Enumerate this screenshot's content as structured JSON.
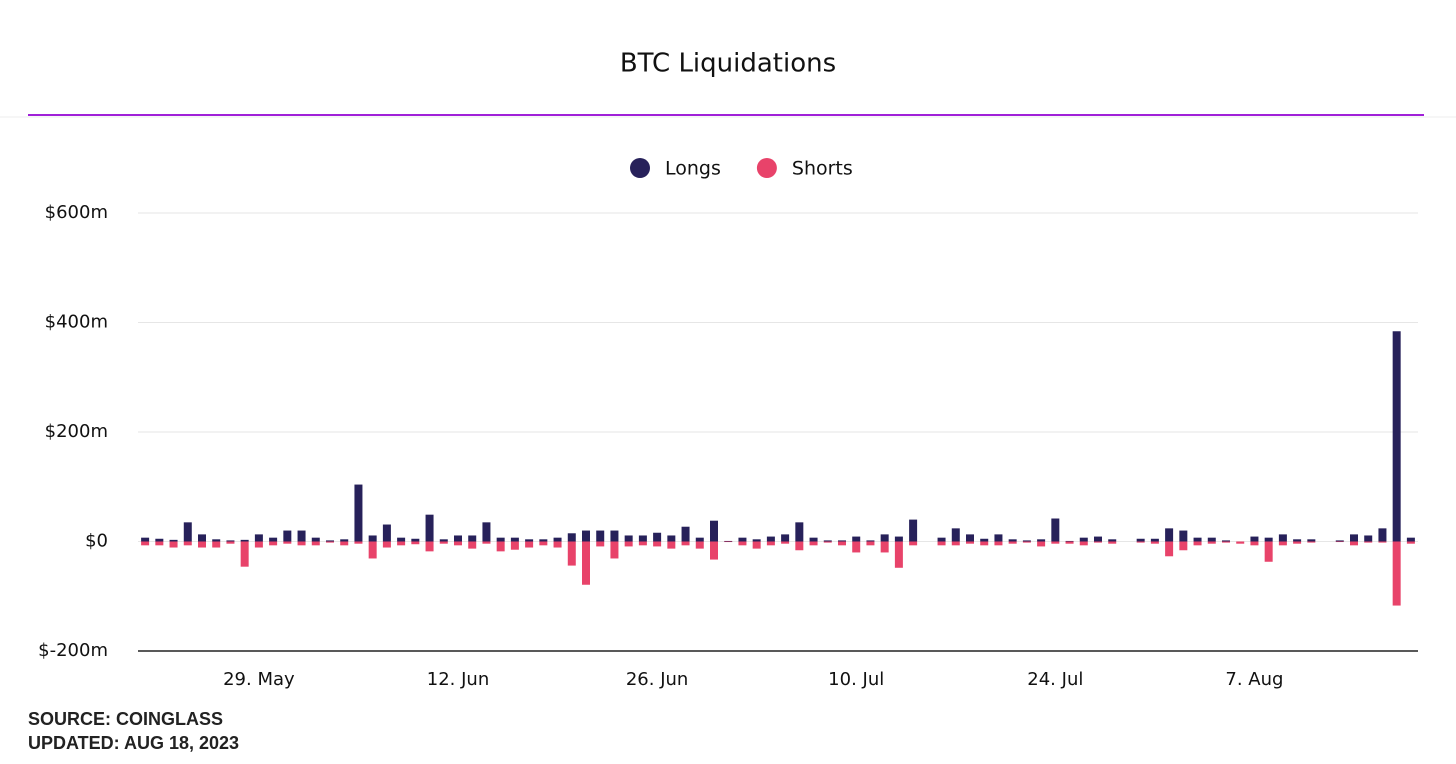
{
  "chart_data": {
    "type": "bar",
    "title": "BTC Liquidations",
    "categories": [
      null,
      null,
      null,
      null,
      null,
      null,
      null,
      null,
      "29. May",
      null,
      null,
      null,
      null,
      null,
      null,
      null,
      null,
      null,
      null,
      null,
      null,
      null,
      "12. Jun",
      null,
      null,
      null,
      null,
      null,
      null,
      null,
      null,
      null,
      null,
      null,
      null,
      null,
      "26. Jun",
      null,
      null,
      null,
      null,
      null,
      null,
      null,
      null,
      null,
      null,
      null,
      null,
      null,
      "10. Jul",
      null,
      null,
      null,
      null,
      null,
      null,
      null,
      null,
      null,
      null,
      null,
      null,
      null,
      "24. Jul",
      null,
      null,
      null,
      null,
      null,
      null,
      null,
      null,
      null,
      null,
      null,
      null,
      null,
      "7. Aug",
      null,
      null,
      null,
      null,
      null,
      null,
      null,
      null,
      null,
      null,
      null
    ],
    "series": [
      {
        "name": "Longs",
        "color": "#27215a",
        "values": [
          7,
          5,
          3,
          35,
          13,
          4,
          2,
          3,
          13,
          7,
          20,
          20,
          7,
          2,
          4,
          104,
          11,
          31,
          7,
          5,
          49,
          4,
          11,
          11,
          35,
          7,
          7,
          4,
          4,
          7,
          15,
          20,
          20,
          20,
          11,
          11,
          16,
          11,
          27,
          7,
          38,
          1,
          7,
          4,
          9,
          13,
          35,
          7,
          2,
          2,
          9,
          2,
          13,
          9,
          40,
          0,
          7,
          24,
          13,
          5,
          13,
          4,
          2,
          4,
          42,
          1,
          7,
          9,
          4,
          0,
          5,
          5,
          24,
          20,
          7,
          7,
          2,
          0,
          9,
          7,
          13,
          4,
          4,
          0,
          2,
          13,
          11,
          24,
          384,
          7
        ]
      },
      {
        "name": "Shorts",
        "color": "#e8436a",
        "values": [
          -7,
          -7,
          -11,
          -7,
          -11,
          -11,
          -4,
          -46,
          -11,
          -7,
          -4,
          -7,
          -7,
          -2,
          -7,
          -4,
          -31,
          -11,
          -7,
          -5,
          -18,
          -4,
          -7,
          -13,
          -4,
          -18,
          -15,
          -11,
          -7,
          -11,
          -44,
          -79,
          -9,
          -31,
          -9,
          -7,
          -9,
          -13,
          -7,
          -13,
          -33,
          -1,
          -7,
          -13,
          -7,
          -4,
          -16,
          -7,
          -2,
          -7,
          -20,
          -7,
          -20,
          -48,
          -7,
          0,
          -7,
          -7,
          -4,
          -7,
          -7,
          -4,
          -2,
          -9,
          -4,
          -4,
          -7,
          -2,
          -4,
          0,
          -2,
          -4,
          -27,
          -16,
          -7,
          -4,
          -2,
          -4,
          -7,
          -37,
          -7,
          -4,
          -2,
          0,
          -1,
          -7,
          -2,
          -2,
          -117,
          -4
        ]
      }
    ],
    "ylim": [
      -200,
      600
    ],
    "yticks": [
      {
        "value": -200,
        "label": "$-200m"
      },
      {
        "value": 0,
        "label": "$0"
      },
      {
        "value": 200,
        "label": "$200m"
      },
      {
        "value": 400,
        "label": "$400m"
      },
      {
        "value": 600,
        "label": "$600m"
      }
    ],
    "grid": true,
    "legend": "top",
    "source": "SOURCE: COINGLASS",
    "updated": "UPDATED: AUG 18, 2023"
  }
}
